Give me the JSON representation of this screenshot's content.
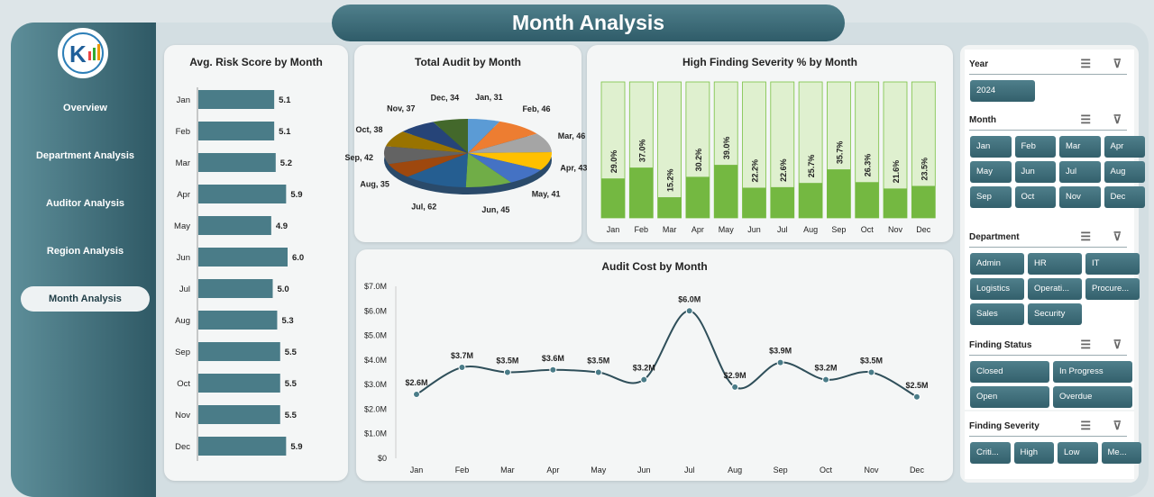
{
  "title": "Month Analysis",
  "sidebar": {
    "items": [
      {
        "label": "Overview"
      },
      {
        "label": "Department Analysis"
      },
      {
        "label": "Auditor Analysis"
      },
      {
        "label": "Region Analysis"
      },
      {
        "label": "Month Analysis",
        "active": true
      }
    ]
  },
  "colors": {
    "teal": "#3d6b78",
    "green": "#7ac143",
    "green_light": "#dff0cf",
    "line": "#2f4f5a"
  },
  "chart_data": [
    {
      "type": "bar",
      "orientation": "horizontal",
      "title": "Avg. Risk Score by Month",
      "categories": [
        "Jan",
        "Feb",
        "Mar",
        "Apr",
        "May",
        "Jun",
        "Jul",
        "Aug",
        "Sep",
        "Oct",
        "Nov",
        "Dec"
      ],
      "values": [
        5.1,
        5.1,
        5.2,
        5.9,
        4.9,
        6.0,
        5.0,
        5.3,
        5.5,
        5.5,
        5.5,
        5.9
      ],
      "labels": [
        "5.1",
        "5.1",
        "5.2",
        "5.9",
        "4.9",
        "6.0",
        "5.0",
        "5.3",
        "5.5",
        "5.5",
        "5.5",
        "5.9"
      ]
    },
    {
      "type": "pie",
      "title": "Total Audit by Month",
      "categories": [
        "Jan",
        "Feb",
        "Mar",
        "Apr",
        "May",
        "Jun",
        "Jul",
        "Aug",
        "Sep",
        "Oct",
        "Nov",
        "Dec"
      ],
      "values": [
        31,
        46,
        46,
        43,
        41,
        45,
        62,
        35,
        42,
        38,
        37,
        34
      ],
      "labels": [
        "Jan, 31",
        "Feb, 46",
        "Mar, 46",
        "Apr, 43",
        "May, 41",
        "Jun, 45",
        "Jul, 62",
        "Aug, 35",
        "Sep, 42",
        "Oct, 38",
        "Nov, 37",
        "Dec, 34"
      ],
      "colors": [
        "#5b9bd5",
        "#ed7d31",
        "#a5a5a5",
        "#ffc000",
        "#4472c4",
        "#70ad47",
        "#255e91",
        "#9e480e",
        "#636363",
        "#997300",
        "#264478",
        "#43682b"
      ]
    },
    {
      "type": "bar",
      "title": "High Finding Severity % by Month",
      "categories": [
        "Jan",
        "Feb",
        "Mar",
        "Apr",
        "May",
        "Jun",
        "Jul",
        "Aug",
        "Sep",
        "Oct",
        "Nov",
        "Dec"
      ],
      "values": [
        29.0,
        37.0,
        15.2,
        30.2,
        39.0,
        22.2,
        22.6,
        25.7,
        35.7,
        26.3,
        21.6,
        23.5
      ],
      "labels": [
        "29.0%",
        "37.0%",
        "15.2%",
        "30.2%",
        "39.0%",
        "22.2%",
        "22.6%",
        "25.7%",
        "35.7%",
        "26.3%",
        "21.6%",
        "23.5%"
      ],
      "ylim": [
        0,
        100
      ]
    },
    {
      "type": "line",
      "title": "Audit Cost by Month",
      "categories": [
        "Jan",
        "Feb",
        "Mar",
        "Apr",
        "May",
        "Jun",
        "Jul",
        "Aug",
        "Sep",
        "Oct",
        "Nov",
        "Dec"
      ],
      "values": [
        2.6,
        3.7,
        3.5,
        3.6,
        3.5,
        3.2,
        6.0,
        2.9,
        3.9,
        3.2,
        3.5,
        2.5
      ],
      "labels": [
        "$2.6M",
        "$3.7M",
        "$3.5M",
        "$3.6M",
        "$3.5M",
        "$3.2M",
        "$6.0M",
        "$2.9M",
        "$3.9M",
        "$3.2M",
        "$3.5M",
        "$2.5M"
      ],
      "yticks": [
        "$0",
        "$1.0M",
        "$2.0M",
        "$3.0M",
        "$4.0M",
        "$5.0M",
        "$6.0M",
        "$7.0M"
      ],
      "ylim": [
        0,
        7
      ],
      "unit": "$M"
    }
  ],
  "slicers": {
    "year": {
      "title": "Year",
      "items": [
        "2024"
      ]
    },
    "month": {
      "title": "Month",
      "items": [
        "Jan",
        "Feb",
        "Mar",
        "Apr",
        "May",
        "Jun",
        "Jul",
        "Aug",
        "Sep",
        "Oct",
        "Nov",
        "Dec"
      ]
    },
    "department": {
      "title": "Department",
      "items": [
        "Admin",
        "HR",
        "IT",
        "Logistics",
        "Operati...",
        "Procure...",
        "Sales",
        "Security"
      ]
    },
    "status": {
      "title": "Finding Status",
      "items": [
        "Closed",
        "In Progress",
        "Open",
        "Overdue"
      ]
    },
    "severity": {
      "title": "Finding Severity",
      "items": [
        "Criti...",
        "High",
        "Low",
        "Me..."
      ]
    }
  }
}
